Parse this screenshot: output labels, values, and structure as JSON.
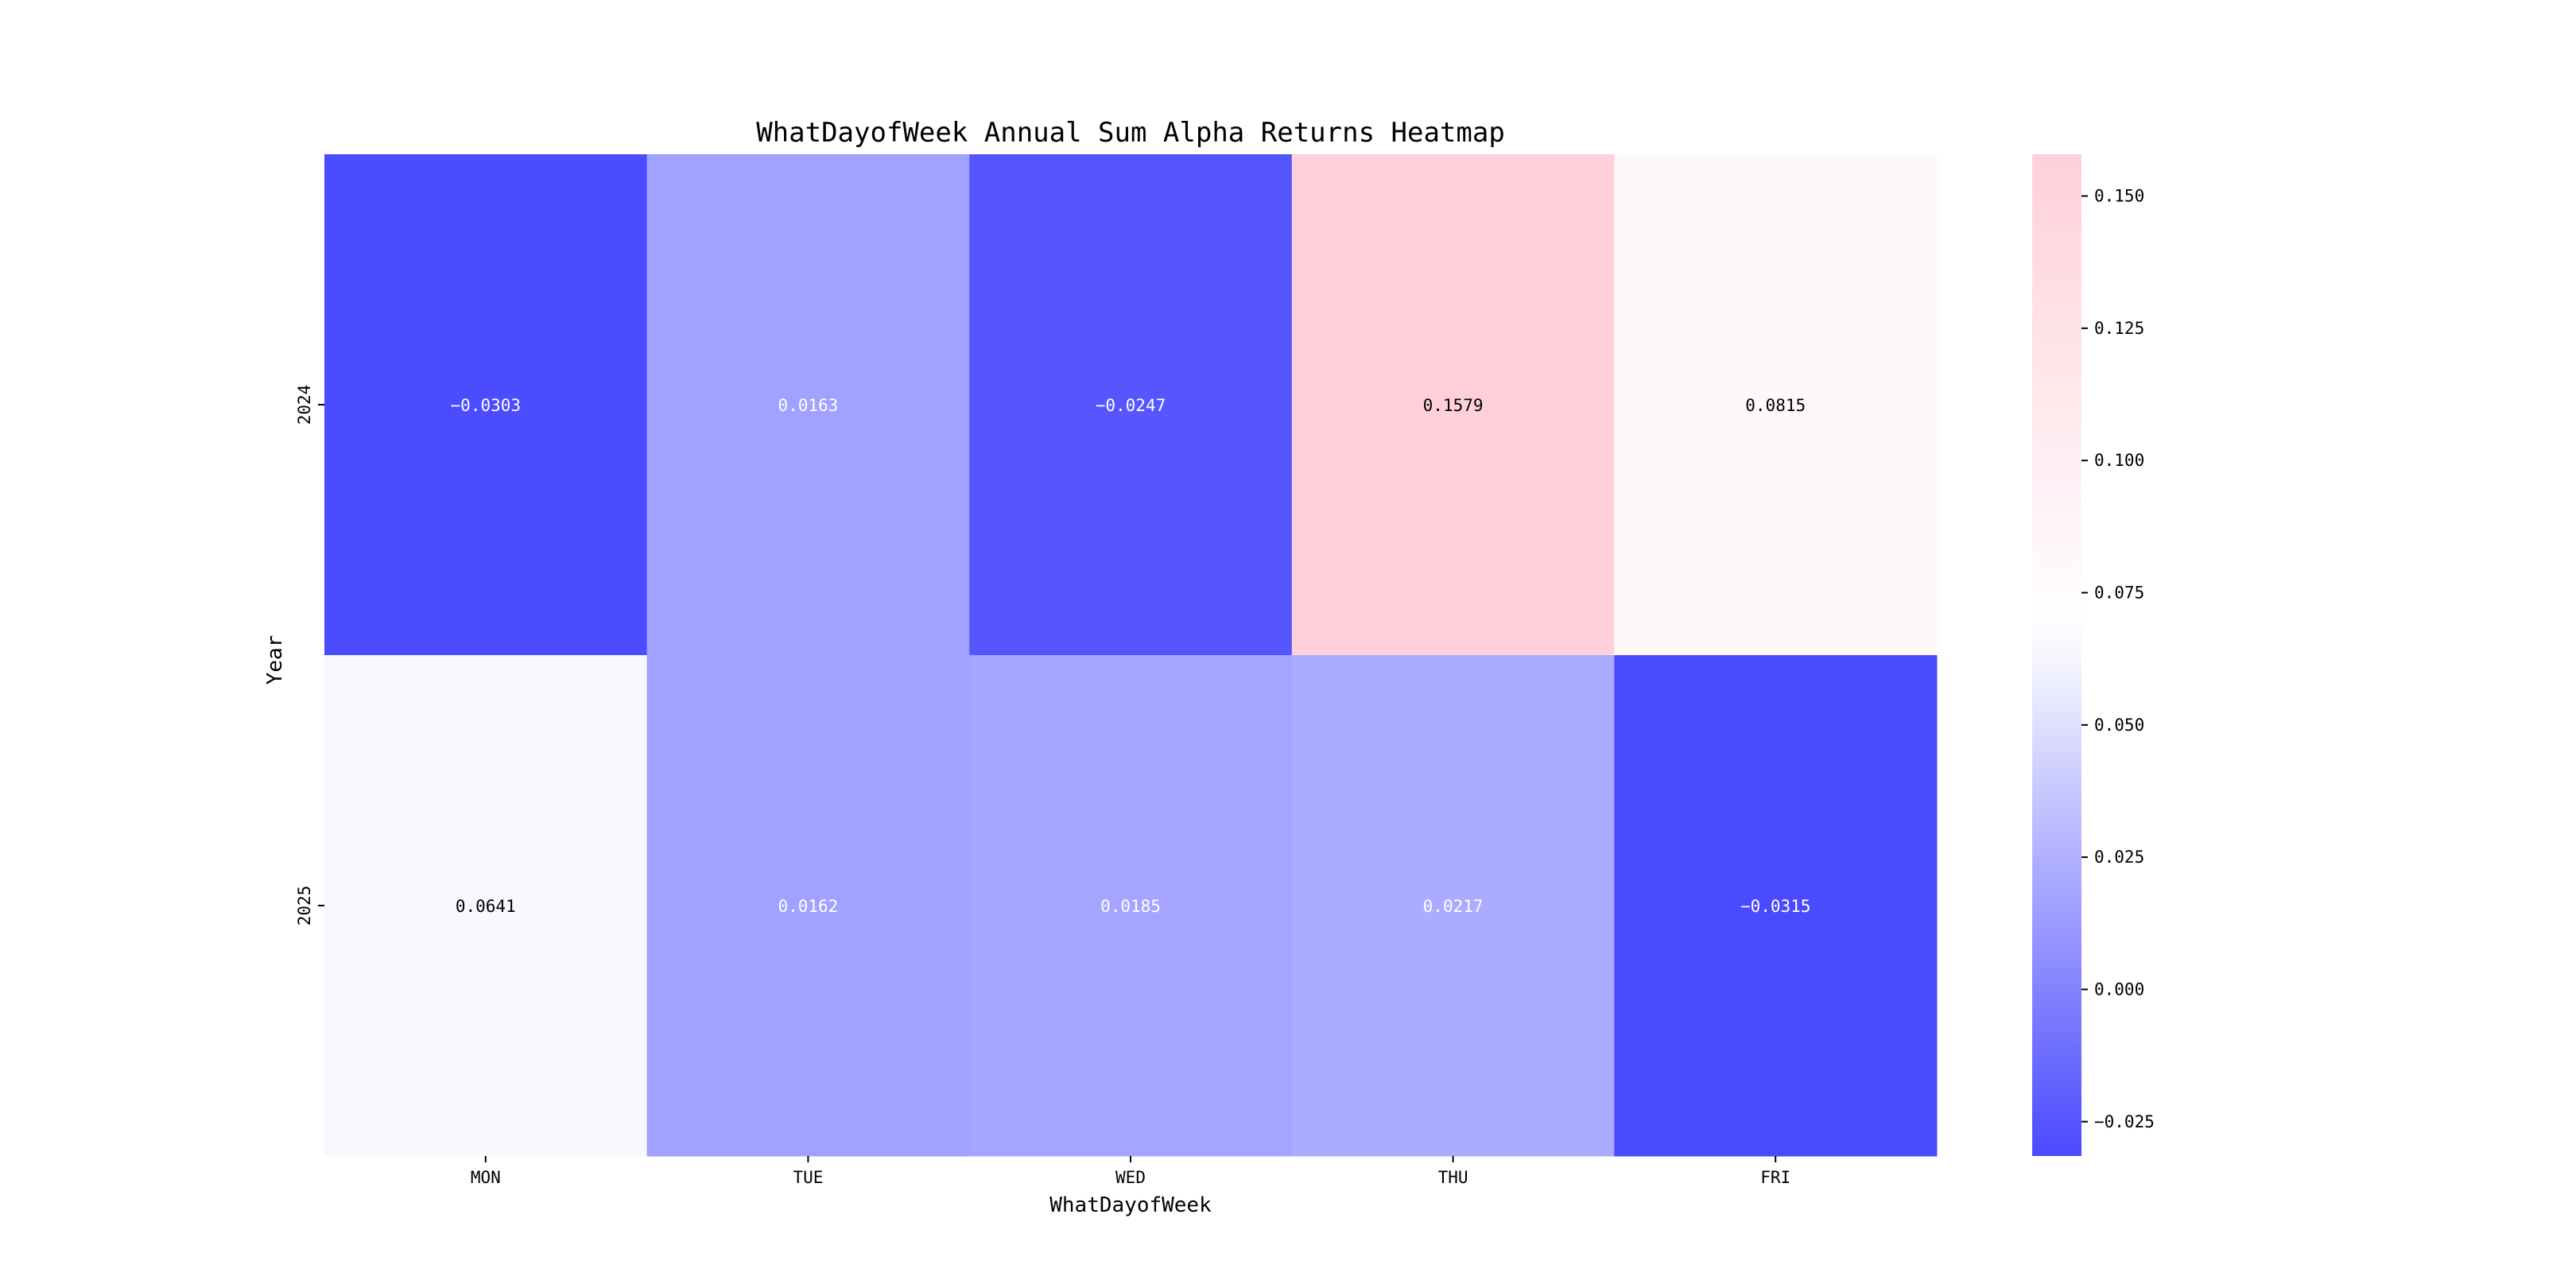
{
  "chart_data": {
    "type": "heatmap",
    "title": "WhatDayofWeek Annual Sum Alpha Returns Heatmap",
    "xlabel": "WhatDayofWeek",
    "ylabel": "Year",
    "x_categories": [
      "MON",
      "TUE",
      "WED",
      "THU",
      "FRI"
    ],
    "y_categories": [
      "2024",
      "2025"
    ],
    "values": [
      [
        -0.0303,
        0.0163,
        -0.0247,
        0.1579,
        0.0815
      ],
      [
        0.0641,
        0.0162,
        0.0185,
        0.0217,
        -0.0315
      ]
    ],
    "value_labels": [
      [
        "−0.0303",
        "0.0163",
        "−0.0247",
        "0.1579",
        "0.0815"
      ],
      [
        "0.0641",
        "0.0162",
        "0.0185",
        "0.0217",
        "−0.0315"
      ]
    ],
    "colorbar": {
      "vmin": -0.0315,
      "vmax": 0.1579,
      "ticks": [
        0.15,
        0.125,
        0.1,
        0.075,
        0.05,
        0.025,
        0.0,
        -0.025
      ],
      "tick_labels": [
        "0.150",
        "0.125",
        "0.100",
        "0.075",
        "0.050",
        "0.025",
        "0.000",
        "−0.025"
      ],
      "colors": {
        "low": "#4a4aff",
        "mid": "#ffffff",
        "high": "#ffd0da"
      },
      "mid_value": 0.068
    }
  }
}
